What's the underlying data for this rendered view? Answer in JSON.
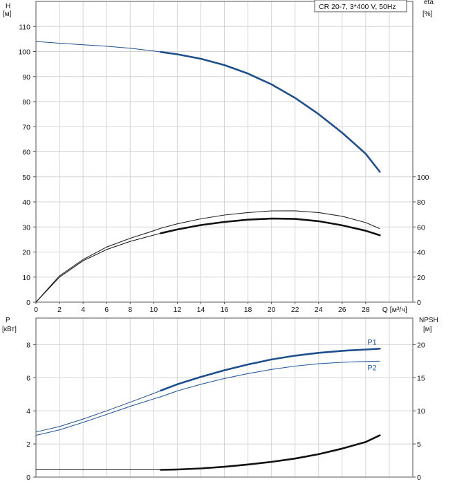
{
  "chart_data": [
    {
      "type": "line",
      "panel": "head-efficiency",
      "legend_text": "CR 20-7, 3*400 V, 50Hz",
      "legend_position": "top-right",
      "grid": true,
      "y_left": {
        "label_line1": "H",
        "label_line2": "[м]",
        "range": [
          0,
          120
        ],
        "ticks": [
          0,
          10,
          20,
          30,
          40,
          50,
          60,
          70,
          80,
          90,
          100,
          110
        ]
      },
      "y_right": {
        "label_line1": "eta",
        "label_line2": "[%]",
        "range": [
          0,
          240
        ],
        "ticks": [
          0,
          20,
          40,
          60,
          80,
          100
        ]
      },
      "x": {
        "label": "Q [м³/ч]",
        "range": [
          0,
          32
        ],
        "ticks": [
          0,
          2,
          4,
          6,
          8,
          10,
          12,
          14,
          16,
          18,
          20,
          22,
          24,
          26,
          28
        ]
      },
      "series": [
        {
          "name": "H",
          "axis": "left",
          "color": "#1f4e8c",
          "style": "thin-then-thick",
          "split_x": 10.6,
          "points": [
            [
              0,
              104
            ],
            [
              2,
              103.3
            ],
            [
              4,
              102.7
            ],
            [
              6,
              102.1
            ],
            [
              8,
              101.3
            ],
            [
              10,
              100.2
            ],
            [
              10.6,
              99.8
            ],
            [
              12,
              98.9
            ],
            [
              14,
              97.1
            ],
            [
              16,
              94.6
            ],
            [
              18,
              91.2
            ],
            [
              20,
              86.9
            ],
            [
              22,
              81.5
            ],
            [
              24,
              75.0
            ],
            [
              26,
              67.6
            ],
            [
              28,
              59.2
            ],
            [
              29.2,
              52.0
            ]
          ]
        },
        {
          "name": "eta",
          "axis": "right",
          "color": "#222222",
          "style": "thin",
          "points": [
            [
              0,
              0
            ],
            [
              2,
              21
            ],
            [
              4,
              34
            ],
            [
              6,
              44
            ],
            [
              8,
              51
            ],
            [
              10,
              57
            ],
            [
              10.6,
              59
            ],
            [
              12,
              62.5
            ],
            [
              14,
              66.5
            ],
            [
              16,
              69.5
            ],
            [
              18,
              71.5
            ],
            [
              20,
              72.8
            ],
            [
              22,
              72.9
            ],
            [
              24,
              71.5
            ],
            [
              26,
              68.5
            ],
            [
              28,
              63.5
            ],
            [
              29.2,
              58.6
            ]
          ]
        },
        {
          "name": "eta",
          "axis": "right",
          "color": "#111111",
          "style": "thin-then-thick",
          "split_x": 10.6,
          "points": [
            [
              0,
              0
            ],
            [
              2,
              20
            ],
            [
              4,
              33
            ],
            [
              6,
              42
            ],
            [
              8,
              48.5
            ],
            [
              10,
              53.5
            ],
            [
              10.6,
              55
            ],
            [
              12,
              58
            ],
            [
              14,
              61.5
            ],
            [
              16,
              64
            ],
            [
              18,
              65.8
            ],
            [
              20,
              66.7
            ],
            [
              22,
              66.4
            ],
            [
              24,
              64.6
            ],
            [
              26,
              61.3
            ],
            [
              28,
              57.0
            ],
            [
              29.2,
              53.4
            ]
          ]
        }
      ]
    },
    {
      "type": "line",
      "panel": "power-npsh",
      "grid": true,
      "y_left": {
        "label_line1": "P",
        "label_line2": "[кВт]",
        "range": [
          0,
          9.6
        ],
        "ticks": [
          0,
          2,
          4,
          6,
          8
        ]
      },
      "y_right": {
        "label_line1": "NPSH",
        "label_line2": "[м]",
        "range": [
          0,
          24
        ],
        "ticks": [
          0,
          5,
          10,
          15,
          20
        ]
      },
      "x": {
        "range": [
          0,
          32
        ]
      },
      "series": [
        {
          "name": "P1",
          "label": "P1",
          "axis": "left",
          "color": "#1f4e8c",
          "style": "thin-then-thick",
          "split_x": 10.6,
          "points": [
            [
              0,
              2.72
            ],
            [
              2,
              3.05
            ],
            [
              4,
              3.5
            ],
            [
              6,
              4.0
            ],
            [
              8,
              4.52
            ],
            [
              10,
              5.05
            ],
            [
              10.6,
              5.22
            ],
            [
              12,
              5.6
            ],
            [
              14,
              6.05
            ],
            [
              16,
              6.45
            ],
            [
              18,
              6.8
            ],
            [
              20,
              7.1
            ],
            [
              22,
              7.33
            ],
            [
              24,
              7.5
            ],
            [
              26,
              7.62
            ],
            [
              28,
              7.7
            ],
            [
              29.2,
              7.75
            ]
          ]
        },
        {
          "name": "P2",
          "label": "P2",
          "axis": "left",
          "color": "#2a5d9f",
          "style": "thin",
          "points": [
            [
              0,
              2.52
            ],
            [
              2,
              2.85
            ],
            [
              4,
              3.3
            ],
            [
              6,
              3.78
            ],
            [
              8,
              4.27
            ],
            [
              10,
              4.72
            ],
            [
              10.6,
              4.85
            ],
            [
              12,
              5.2
            ],
            [
              14,
              5.6
            ],
            [
              16,
              5.95
            ],
            [
              18,
              6.25
            ],
            [
              20,
              6.5
            ],
            [
              22,
              6.7
            ],
            [
              24,
              6.84
            ],
            [
              26,
              6.93
            ],
            [
              28,
              6.98
            ],
            [
              29.2,
              7.0
            ]
          ]
        },
        {
          "name": "NPSH",
          "axis": "right",
          "color": "#111111",
          "style": "thin-then-thick",
          "split_x": 10.6,
          "points": [
            [
              0,
              1.1
            ],
            [
              4,
              1.1
            ],
            [
              8,
              1.1
            ],
            [
              10.6,
              1.1
            ],
            [
              12,
              1.15
            ],
            [
              14,
              1.3
            ],
            [
              16,
              1.55
            ],
            [
              18,
              1.9
            ],
            [
              20,
              2.3
            ],
            [
              22,
              2.8
            ],
            [
              24,
              3.45
            ],
            [
              26,
              4.3
            ],
            [
              28,
              5.3
            ],
            [
              29.2,
              6.3
            ]
          ]
        }
      ]
    }
  ]
}
